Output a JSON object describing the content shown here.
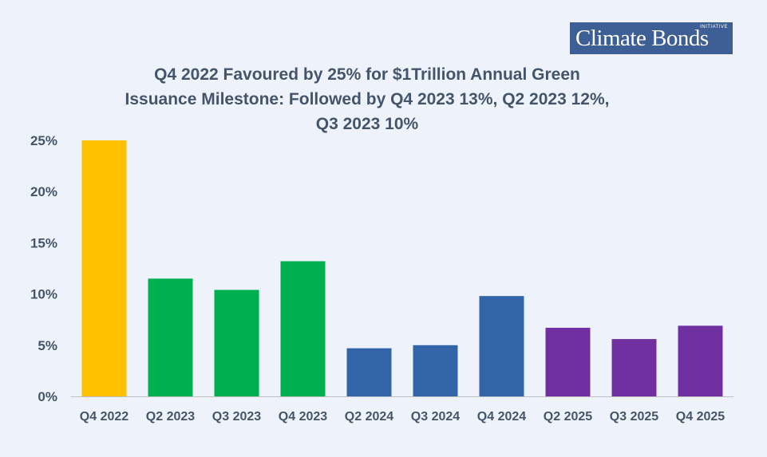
{
  "logo": {
    "text": "Climate Bonds",
    "sub": "INITIATIVE"
  },
  "colors": {
    "background": "#eef3fb",
    "text": "#44546a",
    "axis": "#bfbfbf",
    "yellow": "#ffc000",
    "green": "#00b050",
    "blue": "#3265a8",
    "purple": "#7030a0"
  },
  "chart_data": {
    "type": "bar",
    "title": "Q4 2022 Favoured by 25% for $1Trillion Annual Green Issuance Milestone: Followed by Q4 2023 13%, Q2 2023 12%, Q3 2023 10%",
    "categories": [
      "Q4 2022",
      "Q2 2023",
      "Q3 2023",
      "Q4 2023",
      "Q2 2024",
      "Q3 2024",
      "Q4 2024",
      "Q2 2025",
      "Q3 2025",
      "Q4 2025"
    ],
    "values": [
      25.0,
      11.5,
      10.4,
      13.2,
      4.7,
      5.0,
      9.8,
      6.7,
      5.6,
      6.9
    ],
    "bar_colors": [
      "#ffc000",
      "#00b050",
      "#00b050",
      "#00b050",
      "#3265a8",
      "#3265a8",
      "#3265a8",
      "#7030a0",
      "#7030a0",
      "#7030a0"
    ],
    "yticks": [
      "0%",
      "5%",
      "10%",
      "15%",
      "20%",
      "25%"
    ],
    "ylim": [
      0,
      25
    ],
    "xlabel": "",
    "ylabel": "",
    "grid": false,
    "legend": "none"
  }
}
